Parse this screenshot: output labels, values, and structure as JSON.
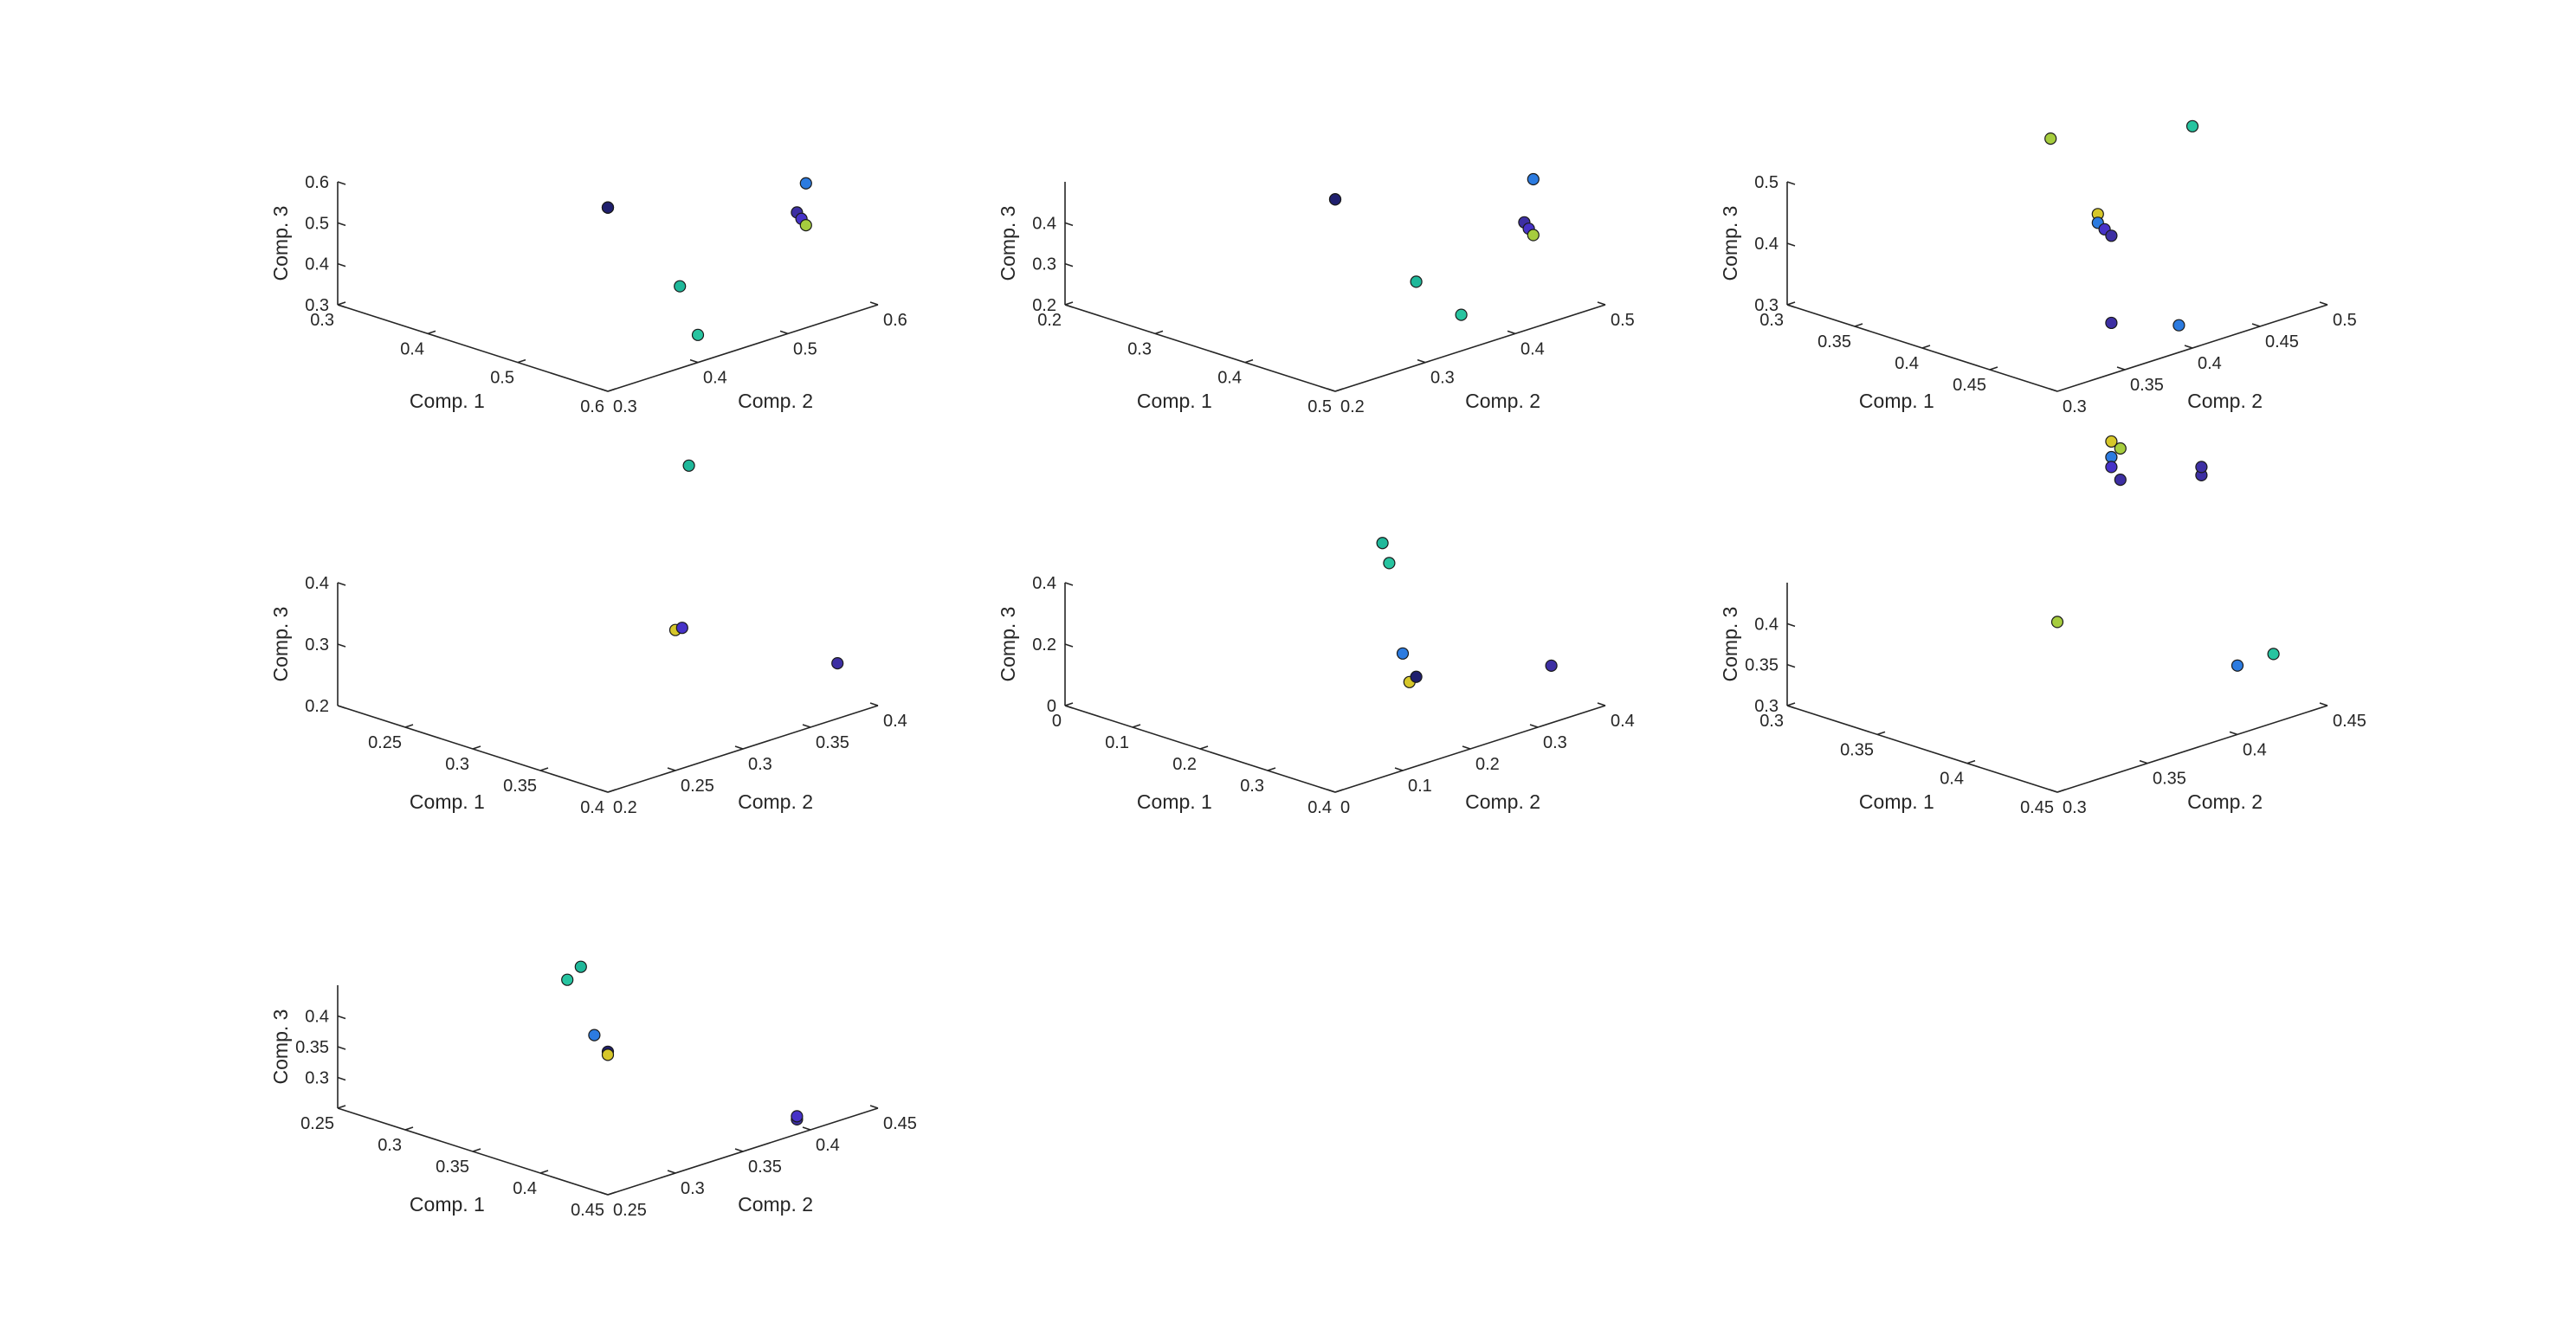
{
  "figure": {
    "background": "#ffffff",
    "axis_color": "#262626"
  },
  "chart_data": [
    {
      "type": "scatter3d",
      "grid": false,
      "xlabel": "Comp. 1",
      "ylabel": "Comp. 2",
      "zlabel": "Comp. 3",
      "xlim": [
        0.3,
        0.6
      ],
      "ylim": [
        0.3,
        0.6
      ],
      "zlim": [
        0.3,
        0.6
      ],
      "xticks": [
        "0.3",
        "0.4",
        "0.5",
        "0.6"
      ],
      "yticks": [
        "0.3",
        "0.4",
        "0.5",
        "0.6"
      ],
      "zticks": [
        "0.3",
        "0.4",
        "0.5",
        "0.6"
      ],
      "points": [
        {
          "x": 0.31,
          "y": 0.59,
          "z": 0.34,
          "color": "#a6cd3e"
        },
        {
          "x": 0.31,
          "y": 0.59,
          "z": 0.34,
          "color": "#55b94f"
        },
        {
          "x": 0.31,
          "y": 0.59,
          "z": 0.34,
          "color": "#1f1f6e"
        },
        {
          "x": 0.52,
          "y": 0.6,
          "z": 0.54,
          "color": "#2c7be0"
        },
        {
          "x": 0.53,
          "y": 0.58,
          "z": 0.49,
          "color": "#3d2fa3"
        },
        {
          "x": 0.54,
          "y": 0.575,
          "z": 0.485,
          "color": "#4632c8"
        },
        {
          "x": 0.55,
          "y": 0.57,
          "z": 0.48,
          "color": "#a6cd3e"
        },
        {
          "x": 0.6,
          "y": 0.38,
          "z": 0.5,
          "color": "#1fb89a"
        },
        {
          "x": 0.57,
          "y": 0.43,
          "z": 0.325,
          "color": "#27c4a0"
        }
      ]
    },
    {
      "type": "scatter3d",
      "grid": false,
      "xlabel": "Comp. 1",
      "ylabel": "Comp. 2",
      "zlabel": "Comp. 3",
      "xlim": [
        0.2,
        0.5
      ],
      "ylim": [
        0.2,
        0.5
      ],
      "zlim": [
        0.2,
        0.5
      ],
      "xticks": [
        "0.2",
        "0.3",
        "0.4",
        "0.5"
      ],
      "yticks": [
        "0.2",
        "0.3",
        "0.4",
        "0.5"
      ],
      "zticks": [
        "0.2",
        "0.3",
        "0.4"
      ],
      "points": [
        {
          "x": 0.21,
          "y": 0.49,
          "z": 0.26,
          "color": "#a6cd3e"
        },
        {
          "x": 0.21,
          "y": 0.49,
          "z": 0.26,
          "color": "#1f1f6e"
        },
        {
          "x": 0.42,
          "y": 0.5,
          "z": 0.45,
          "color": "#2c7be0"
        },
        {
          "x": 0.44,
          "y": 0.47,
          "z": 0.38,
          "color": "#3d2fa3"
        },
        {
          "x": 0.45,
          "y": 0.465,
          "z": 0.375,
          "color": "#4632c8"
        },
        {
          "x": 0.46,
          "y": 0.46,
          "z": 0.37,
          "color": "#a6cd3e"
        },
        {
          "x": 0.49,
          "y": 0.3,
          "z": 0.39,
          "color": "#1fb89a"
        },
        {
          "x": 0.48,
          "y": 0.36,
          "z": 0.26,
          "color": "#27c4a0"
        }
      ]
    },
    {
      "type": "scatter3d",
      "grid": false,
      "xlabel": "Comp. 1",
      "ylabel": "Comp. 2",
      "zlabel": "Comp. 3",
      "xlim": [
        0.3,
        0.5
      ],
      "ylim": [
        0.3,
        0.5
      ],
      "zlim": [
        0.3,
        0.5
      ],
      "xticks": [
        "0.3",
        "0.35",
        "0.4",
        "0.45"
      ],
      "yticks": [
        "0.3",
        "0.35",
        "0.4",
        "0.45",
        "0.5"
      ],
      "zticks": [
        "0.3",
        "0.4",
        "0.5"
      ],
      "points": [
        {
          "x": 0.305,
          "y": 0.49,
          "z": 0.44,
          "color": "#a6cd3e"
        },
        {
          "x": 0.36,
          "y": 0.47,
          "z": 0.37,
          "color": "#d6c72a"
        },
        {
          "x": 0.37,
          "y": 0.46,
          "z": 0.37,
          "color": "#2c7be0"
        },
        {
          "x": 0.38,
          "y": 0.455,
          "z": 0.37,
          "color": "#4632c8"
        },
        {
          "x": 0.39,
          "y": 0.45,
          "z": 0.37,
          "color": "#3d2fa3"
        },
        {
          "x": 0.4,
          "y": 0.5,
          "z": 0.52,
          "color": "#27c4a0"
        },
        {
          "x": 0.48,
          "y": 0.36,
          "z": 0.355,
          "color": "#3d2fa3"
        },
        {
          "x": 0.49,
          "y": 0.4,
          "z": 0.33,
          "color": "#2c7be0"
        }
      ]
    },
    {
      "type": "scatter3d",
      "grid": false,
      "xlabel": "Comp. 1",
      "ylabel": "Comp. 2",
      "zlabel": "Comp. 3",
      "xlim": [
        0.2,
        0.4
      ],
      "ylim": [
        0.2,
        0.4
      ],
      "zlim": [
        0.2,
        0.4
      ],
      "xticks": [
        "0.25",
        "0.3",
        "0.35",
        "0.4"
      ],
      "yticks": [
        "0.2",
        "0.25",
        "0.3",
        "0.35",
        "0.4"
      ],
      "zticks": [
        "0.2",
        "0.3",
        "0.4"
      ],
      "points": [
        {
          "x": 0.28,
          "y": 0.38,
          "z": 0.52,
          "color": "#1fb89a"
        },
        {
          "x": 0.33,
          "y": 0.32,
          "z": 0.33,
          "color": "#d6c72a"
        },
        {
          "x": 0.33,
          "y": 0.325,
          "z": 0.33,
          "color": "#4632c8"
        },
        {
          "x": 0.4,
          "y": 0.37,
          "z": 0.29,
          "color": "#3d2fa3"
        }
      ]
    },
    {
      "type": "scatter3d",
      "grid": false,
      "xlabel": "Comp. 1",
      "ylabel": "Comp. 2",
      "zlabel": "Comp. 3",
      "xlim": [
        0,
        0.4
      ],
      "ylim": [
        0,
        0.4
      ],
      "zlim": [
        0,
        0.4
      ],
      "xticks": [
        "0",
        "0.1",
        "0.2",
        "0.3",
        "0.4"
      ],
      "yticks": [
        "0",
        "0.1",
        "0.2",
        "0.3",
        "0.4"
      ],
      "zticks": [
        "0",
        "0.2",
        "0.4"
      ],
      "points": [
        {
          "x": 0.25,
          "y": 0.22,
          "z": 0.55,
          "color": "#1fb89a"
        },
        {
          "x": 0.28,
          "y": 0.2,
          "z": 0.52,
          "color": "#27c4a0"
        },
        {
          "x": 0.3,
          "y": 0.2,
          "z": 0.24,
          "color": "#2c7be0"
        },
        {
          "x": 0.3,
          "y": 0.21,
          "z": 0.14,
          "color": "#d6c72a"
        },
        {
          "x": 0.3,
          "y": 0.22,
          "z": 0.15,
          "color": "#1f1f6e"
        },
        {
          "x": 0.36,
          "y": 0.36,
          "z": 0.13,
          "color": "#3d2fa3"
        }
      ]
    },
    {
      "type": "scatter3d",
      "grid": false,
      "xlabel": "Comp. 1",
      "ylabel": "Comp. 2",
      "zlabel": "Comp. 3",
      "xlim": [
        0.3,
        0.45
      ],
      "ylim": [
        0.3,
        0.45
      ],
      "zlim": [
        0.3,
        0.45
      ],
      "xticks": [
        "0.3",
        "0.35",
        "0.4",
        "0.45"
      ],
      "yticks": [
        "0.3",
        "0.35",
        "0.4",
        "0.45"
      ],
      "zticks": [
        "0.3",
        "0.35",
        "0.4"
      ],
      "points": [
        {
          "x": 0.36,
          "y": 0.42,
          "z": 0.58,
          "color": "#d6c72a"
        },
        {
          "x": 0.365,
          "y": 0.42,
          "z": 0.575,
          "color": "#a6cd3e"
        },
        {
          "x": 0.37,
          "y": 0.41,
          "z": 0.575,
          "color": "#2c7be0"
        },
        {
          "x": 0.375,
          "y": 0.405,
          "z": 0.57,
          "color": "#4632c8"
        },
        {
          "x": 0.385,
          "y": 0.4,
          "z": 0.565,
          "color": "#3d2fa3"
        },
        {
          "x": 0.4,
          "y": 0.43,
          "z": 0.56,
          "color": "#3d2fa3"
        },
        {
          "x": 0.4,
          "y": 0.43,
          "z": 0.57,
          "color": "#3d2fa3"
        },
        {
          "x": 0.37,
          "y": 0.38,
          "z": 0.395,
          "color": "#a6cd3e"
        },
        {
          "x": 0.44,
          "y": 0.41,
          "z": 0.37,
          "color": "#2c7be0"
        },
        {
          "x": 0.44,
          "y": 0.43,
          "z": 0.37,
          "color": "#27c4a0"
        }
      ]
    },
    {
      "type": "scatter3d",
      "grid": false,
      "xlabel": "Comp. 1",
      "ylabel": "Comp. 2",
      "zlabel": "Comp. 3",
      "xlim": [
        0.25,
        0.45
      ],
      "ylim": [
        0.25,
        0.45
      ],
      "zlim": [
        0.25,
        0.45
      ],
      "xticks": [
        "0.25",
        "0.3",
        "0.35",
        "0.4",
        "0.45"
      ],
      "yticks": [
        "0.25",
        "0.3",
        "0.35",
        "0.4",
        "0.45"
      ],
      "zticks": [
        "0.3",
        "0.35",
        "0.4"
      ],
      "points": [
        {
          "x": 0.34,
          "y": 0.34,
          "z": 0.48,
          "color": "#1fb89a"
        },
        {
          "x": 0.35,
          "y": 0.32,
          "z": 0.48,
          "color": "#27c4a0"
        },
        {
          "x": 0.36,
          "y": 0.33,
          "z": 0.39,
          "color": "#2c7be0"
        },
        {
          "x": 0.37,
          "y": 0.33,
          "z": 0.37,
          "color": "#1f1f6e"
        },
        {
          "x": 0.37,
          "y": 0.33,
          "z": 0.365,
          "color": "#d6c72a"
        },
        {
          "x": 0.44,
          "y": 0.4,
          "z": 0.26,
          "color": "#3d2fa3"
        },
        {
          "x": 0.44,
          "y": 0.4,
          "z": 0.265,
          "color": "#4632c8"
        }
      ]
    }
  ]
}
